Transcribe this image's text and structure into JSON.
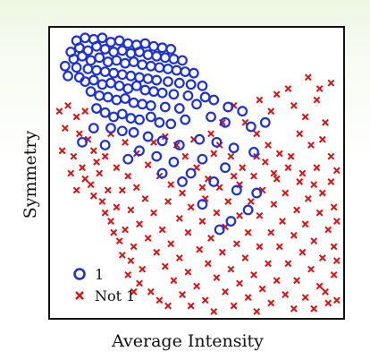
{
  "chart_data": {
    "type": "scatter",
    "title": "",
    "xlabel": "Average Intensity",
    "ylabel": "Symmetry",
    "grid": false,
    "axis_ticks": false,
    "legend_position": "bottom-left",
    "xlim": [
      0,
      1
    ],
    "ylim": [
      0,
      1
    ],
    "series": [
      {
        "name": "1",
        "marker": "circle-open",
        "color": "#1a2fe0",
        "points": [
          [
            0.08,
            0.97
          ],
          [
            0.11,
            0.98
          ],
          [
            0.14,
            0.975
          ],
          [
            0.17,
            0.98
          ],
          [
            0.2,
            0.965
          ],
          [
            0.23,
            0.97
          ],
          [
            0.26,
            0.96
          ],
          [
            0.29,
            0.955
          ],
          [
            0.32,
            0.96
          ],
          [
            0.35,
            0.95
          ],
          [
            0.38,
            0.945
          ],
          [
            0.41,
            0.94
          ],
          [
            0.06,
            0.93
          ],
          [
            0.09,
            0.945
          ],
          [
            0.12,
            0.935
          ],
          [
            0.15,
            0.95
          ],
          [
            0.18,
            0.94
          ],
          [
            0.21,
            0.93
          ],
          [
            0.24,
            0.935
          ],
          [
            0.27,
            0.925
          ],
          [
            0.3,
            0.93
          ],
          [
            0.33,
            0.92
          ],
          [
            0.36,
            0.915
          ],
          [
            0.39,
            0.91
          ],
          [
            0.42,
            0.905
          ],
          [
            0.45,
            0.9
          ],
          [
            0.07,
            0.905
          ],
          [
            0.1,
            0.915
          ],
          [
            0.13,
            0.9
          ],
          [
            0.16,
            0.91
          ],
          [
            0.19,
            0.895
          ],
          [
            0.22,
            0.9
          ],
          [
            0.25,
            0.89
          ],
          [
            0.28,
            0.895
          ],
          [
            0.31,
            0.885
          ],
          [
            0.34,
            0.88
          ],
          [
            0.37,
            0.875
          ],
          [
            0.4,
            0.87
          ],
          [
            0.43,
            0.865
          ],
          [
            0.46,
            0.86
          ],
          [
            0.49,
            0.855
          ],
          [
            0.04,
            0.88
          ],
          [
            0.08,
            0.875
          ],
          [
            0.12,
            0.87
          ],
          [
            0.15,
            0.865
          ],
          [
            0.18,
            0.86
          ],
          [
            0.21,
            0.855
          ],
          [
            0.24,
            0.85
          ],
          [
            0.27,
            0.845
          ],
          [
            0.3,
            0.84
          ],
          [
            0.33,
            0.835
          ],
          [
            0.36,
            0.83
          ],
          [
            0.4,
            0.825
          ],
          [
            0.44,
            0.82
          ],
          [
            0.48,
            0.815
          ],
          [
            0.52,
            0.81
          ],
          [
            0.05,
            0.845
          ],
          [
            0.09,
            0.84
          ],
          [
            0.11,
            0.825
          ],
          [
            0.14,
            0.83
          ],
          [
            0.17,
            0.815
          ],
          [
            0.2,
            0.82
          ],
          [
            0.23,
            0.81
          ],
          [
            0.26,
            0.8
          ],
          [
            0.29,
            0.81
          ],
          [
            0.32,
            0.795
          ],
          [
            0.35,
            0.79
          ],
          [
            0.38,
            0.785
          ],
          [
            0.42,
            0.78
          ],
          [
            0.47,
            0.775
          ],
          [
            0.53,
            0.77
          ],
          [
            0.13,
            0.79
          ],
          [
            0.16,
            0.775
          ],
          [
            0.19,
            0.77
          ],
          [
            0.22,
            0.76
          ],
          [
            0.25,
            0.765
          ],
          [
            0.28,
            0.75
          ],
          [
            0.31,
            0.745
          ],
          [
            0.34,
            0.74
          ],
          [
            0.39,
            0.735
          ],
          [
            0.44,
            0.73
          ],
          [
            0.5,
            0.745
          ],
          [
            0.56,
            0.76
          ],
          [
            0.61,
            0.735
          ],
          [
            0.66,
            0.72
          ],
          [
            0.15,
            0.73
          ],
          [
            0.18,
            0.715
          ],
          [
            0.21,
            0.7
          ],
          [
            0.24,
            0.71
          ],
          [
            0.27,
            0.695
          ],
          [
            0.3,
            0.69
          ],
          [
            0.34,
            0.7
          ],
          [
            0.37,
            0.68
          ],
          [
            0.41,
            0.675
          ],
          [
            0.46,
            0.69
          ],
          [
            0.55,
            0.7
          ],
          [
            0.6,
            0.68
          ],
          [
            0.69,
            0.665
          ],
          [
            0.74,
            0.68
          ],
          [
            0.2,
            0.66
          ],
          [
            0.24,
            0.65
          ],
          [
            0.28,
            0.645
          ],
          [
            0.33,
            0.63
          ],
          [
            0.38,
            0.615
          ],
          [
            0.44,
            0.6
          ],
          [
            0.51,
            0.62
          ],
          [
            0.57,
            0.61
          ],
          [
            0.63,
            0.59
          ],
          [
            0.7,
            0.575
          ],
          [
            0.52,
            0.55
          ],
          [
            0.3,
            0.58
          ],
          [
            0.18,
            0.6
          ],
          [
            0.36,
            0.56
          ],
          [
            0.42,
            0.54
          ],
          [
            0.48,
            0.5
          ],
          [
            0.56,
            0.47
          ],
          [
            0.64,
            0.44
          ],
          [
            0.71,
            0.43
          ],
          [
            0.45,
            0.47
          ],
          [
            0.38,
            0.5
          ],
          [
            0.6,
            0.52
          ],
          [
            0.52,
            0.39
          ],
          [
            0.62,
            0.33
          ],
          [
            0.68,
            0.37
          ],
          [
            0.58,
            0.3
          ],
          [
            0.1,
            0.61
          ],
          [
            0.26,
            0.55
          ],
          [
            0.14,
            0.66
          ]
        ]
      },
      {
        "name": "Not 1",
        "marker": "cross",
        "color": "#e01010",
        "points": [
          [
            0.02,
            0.72
          ],
          [
            0.05,
            0.74
          ],
          [
            0.08,
            0.7
          ],
          [
            0.11,
            0.72
          ],
          [
            0.04,
            0.66
          ],
          [
            0.09,
            0.64
          ],
          [
            0.12,
            0.62
          ],
          [
            0.03,
            0.58
          ],
          [
            0.07,
            0.56
          ],
          [
            0.14,
            0.58
          ],
          [
            0.1,
            0.52
          ],
          [
            0.06,
            0.5
          ],
          [
            0.16,
            0.5
          ],
          [
            0.13,
            0.46
          ],
          [
            0.19,
            0.44
          ],
          [
            0.17,
            0.4
          ],
          [
            0.22,
            0.38
          ],
          [
            0.2,
            0.33
          ],
          [
            0.25,
            0.3
          ],
          [
            0.23,
            0.26
          ],
          [
            0.28,
            0.24
          ],
          [
            0.27,
            0.19
          ],
          [
            0.31,
            0.16
          ],
          [
            0.3,
            0.11
          ],
          [
            0.34,
            0.08
          ],
          [
            0.37,
            0.05
          ],
          [
            0.4,
            0.03
          ],
          [
            0.18,
            0.56
          ],
          [
            0.22,
            0.52
          ],
          [
            0.26,
            0.49
          ],
          [
            0.29,
            0.45
          ],
          [
            0.24,
            0.44
          ],
          [
            0.32,
            0.41
          ],
          [
            0.27,
            0.37
          ],
          [
            0.35,
            0.36
          ],
          [
            0.3,
            0.32
          ],
          [
            0.38,
            0.3
          ],
          [
            0.33,
            0.27
          ],
          [
            0.41,
            0.25
          ],
          [
            0.36,
            0.22
          ],
          [
            0.44,
            0.2
          ],
          [
            0.39,
            0.17
          ],
          [
            0.47,
            0.15
          ],
          [
            0.42,
            0.12
          ],
          [
            0.5,
            0.1
          ],
          [
            0.45,
            0.07
          ],
          [
            0.53,
            0.05
          ],
          [
            0.48,
            0.03
          ],
          [
            0.33,
            0.53
          ],
          [
            0.37,
            0.49
          ],
          [
            0.41,
            0.46
          ],
          [
            0.45,
            0.43
          ],
          [
            0.4,
            0.4
          ],
          [
            0.48,
            0.38
          ],
          [
            0.44,
            0.34
          ],
          [
            0.52,
            0.33
          ],
          [
            0.47,
            0.29
          ],
          [
            0.55,
            0.27
          ],
          [
            0.51,
            0.23
          ],
          [
            0.59,
            0.22
          ],
          [
            0.54,
            0.18
          ],
          [
            0.62,
            0.16
          ],
          [
            0.57,
            0.13
          ],
          [
            0.65,
            0.11
          ],
          [
            0.6,
            0.08
          ],
          [
            0.68,
            0.06
          ],
          [
            0.63,
            0.03
          ],
          [
            0.46,
            0.56
          ],
          [
            0.5,
            0.52
          ],
          [
            0.54,
            0.48
          ],
          [
            0.58,
            0.45
          ],
          [
            0.53,
            0.41
          ],
          [
            0.61,
            0.4
          ],
          [
            0.57,
            0.36
          ],
          [
            0.65,
            0.35
          ],
          [
            0.6,
            0.31
          ],
          [
            0.68,
            0.29
          ],
          [
            0.64,
            0.25
          ],
          [
            0.72,
            0.24
          ],
          [
            0.67,
            0.2
          ],
          [
            0.75,
            0.18
          ],
          [
            0.7,
            0.14
          ],
          [
            0.78,
            0.12
          ],
          [
            0.73,
            0.09
          ],
          [
            0.81,
            0.07
          ],
          [
            0.76,
            0.04
          ],
          [
            0.84,
            0.02
          ],
          [
            0.58,
            0.6
          ],
          [
            0.62,
            0.56
          ],
          [
            0.66,
            0.52
          ],
          [
            0.7,
            0.49
          ],
          [
            0.65,
            0.46
          ],
          [
            0.73,
            0.44
          ],
          [
            0.69,
            0.4
          ],
          [
            0.77,
            0.39
          ],
          [
            0.72,
            0.35
          ],
          [
            0.8,
            0.33
          ],
          [
            0.76,
            0.29
          ],
          [
            0.84,
            0.28
          ],
          [
            0.79,
            0.24
          ],
          [
            0.87,
            0.22
          ],
          [
            0.82,
            0.18
          ],
          [
            0.9,
            0.16
          ],
          [
            0.85,
            0.12
          ],
          [
            0.93,
            0.1
          ],
          [
            0.88,
            0.06
          ],
          [
            0.96,
            0.04
          ],
          [
            0.67,
            0.68
          ],
          [
            0.71,
            0.64
          ],
          [
            0.75,
            0.6
          ],
          [
            0.79,
            0.57
          ],
          [
            0.74,
            0.54
          ],
          [
            0.82,
            0.52
          ],
          [
            0.78,
            0.48
          ],
          [
            0.86,
            0.47
          ],
          [
            0.81,
            0.43
          ],
          [
            0.89,
            0.41
          ],
          [
            0.85,
            0.37
          ],
          [
            0.93,
            0.36
          ],
          [
            0.88,
            0.32
          ],
          [
            0.96,
            0.3
          ],
          [
            0.91,
            0.26
          ],
          [
            0.98,
            0.24
          ],
          [
            0.94,
            0.2
          ],
          [
            0.98,
            0.14
          ],
          [
            0.95,
            0.08
          ],
          [
            0.78,
            0.78
          ],
          [
            0.84,
            0.74
          ],
          [
            0.88,
            0.7
          ],
          [
            0.92,
            0.76
          ],
          [
            0.95,
            0.68
          ],
          [
            0.86,
            0.64
          ],
          [
            0.9,
            0.6
          ],
          [
            0.94,
            0.62
          ],
          [
            0.97,
            0.56
          ],
          [
            0.92,
            0.52
          ],
          [
            0.97,
            0.47
          ],
          [
            0.94,
            0.43
          ],
          [
            0.98,
            0.38
          ],
          [
            0.89,
            0.84
          ],
          [
            0.93,
            0.8
          ],
          [
            0.97,
            0.82
          ],
          [
            0.82,
            0.8
          ],
          [
            0.76,
            0.72
          ],
          [
            0.72,
            0.76
          ],
          [
            0.63,
            0.74
          ],
          [
            0.59,
            0.68
          ],
          [
            0.55,
            0.64
          ],
          [
            0.49,
            0.62
          ],
          [
            0.43,
            0.6
          ],
          [
            0.39,
            0.63
          ],
          [
            0.35,
            0.61
          ],
          [
            0.2,
            0.64
          ],
          [
            0.25,
            0.61
          ],
          [
            0.29,
            0.57
          ],
          [
            0.15,
            0.54
          ],
          [
            0.11,
            0.48
          ],
          [
            0.08,
            0.44
          ],
          [
            0.14,
            0.42
          ],
          [
            0.18,
            0.36
          ],
          [
            0.21,
            0.29
          ],
          [
            0.24,
            0.21
          ],
          [
            0.26,
            0.14
          ],
          [
            0.28,
            0.08
          ],
          [
            0.56,
            0.57
          ],
          [
            0.52,
            0.45
          ],
          [
            0.63,
            0.49
          ],
          [
            0.71,
            0.56
          ],
          [
            0.77,
            0.5
          ],
          [
            0.83,
            0.56
          ],
          [
            0.87,
            0.5
          ],
          [
            0.91,
            0.46
          ],
          [
            0.99,
            0.51
          ],
          [
            0.99,
            0.33
          ],
          [
            0.99,
            0.19
          ],
          [
            0.99,
            0.05
          ],
          [
            0.91,
            0.02
          ],
          [
            0.56,
            0.01
          ],
          [
            0.71,
            0.01
          ]
        ]
      }
    ]
  }
}
